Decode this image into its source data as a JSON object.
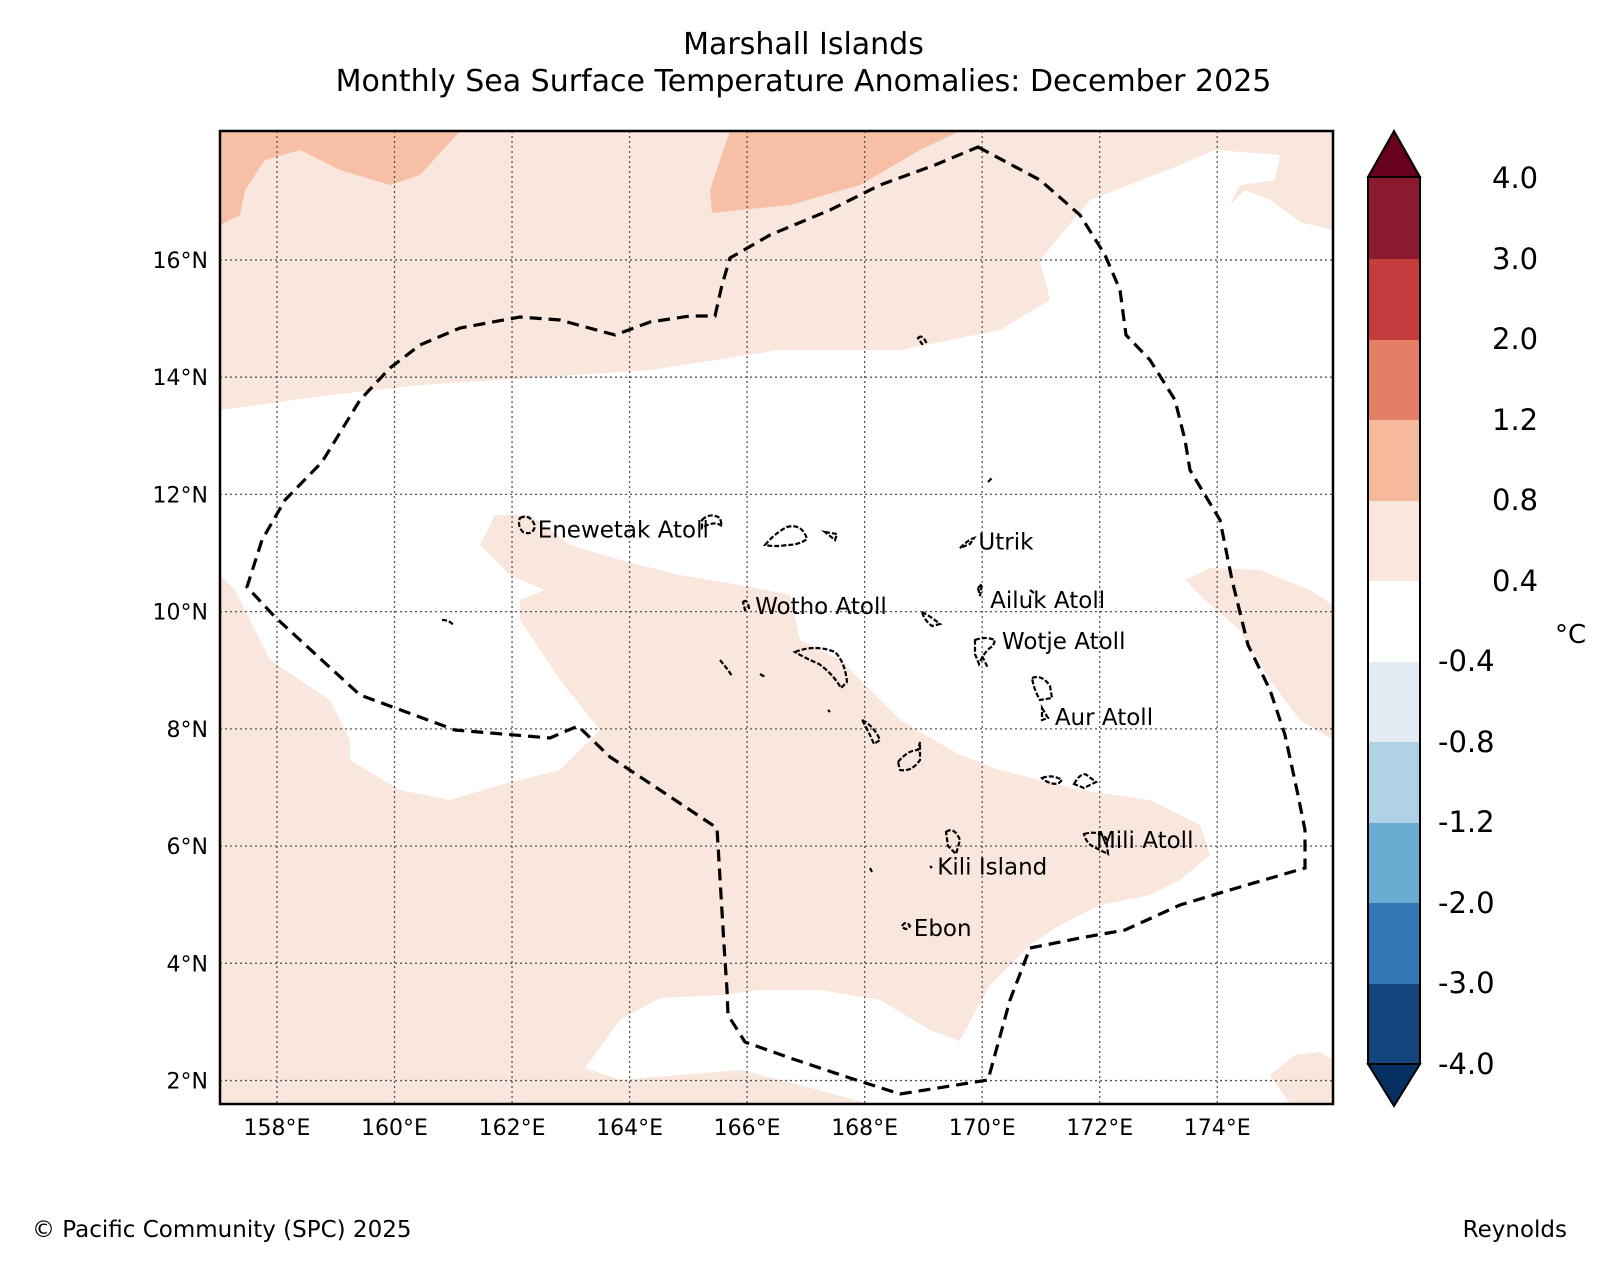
{
  "title": {
    "line1": "Marshall Islands",
    "line2": "Monthly Sea Surface Temperature Anomalies: December 2025"
  },
  "axes": {
    "x_ticks": [
      "158°E",
      "160°E",
      "162°E",
      "164°E",
      "166°E",
      "168°E",
      "170°E",
      "172°E",
      "174°E"
    ],
    "x_values": [
      158,
      160,
      162,
      164,
      166,
      168,
      170,
      172,
      174
    ],
    "y_ticks": [
      "2°N",
      "4°N",
      "6°N",
      "8°N",
      "10°N",
      "12°N",
      "14°N",
      "16°N"
    ],
    "y_values": [
      2,
      4,
      6,
      8,
      10,
      12,
      14,
      16
    ],
    "lon_range": [
      157.03,
      175.97
    ],
    "lat_range": [
      1.6,
      18.2
    ],
    "grid": true
  },
  "places": [
    {
      "name": "Enewetak Atoll",
      "lon": 162.3,
      "lat": 11.4
    },
    {
      "name": "Utrik",
      "lon": 169.8,
      "lat": 11.2
    },
    {
      "name": "Wotho Atoll",
      "lon": 166.0,
      "lat": 10.1
    },
    {
      "name": "Ailuk Atoll",
      "lon": 170.0,
      "lat": 10.2
    },
    {
      "name": "Wotje Atoll",
      "lon": 170.2,
      "lat": 9.5
    },
    {
      "name": "Aur Atoll",
      "lon": 171.1,
      "lat": 8.2
    },
    {
      "name": "Mili Atoll",
      "lon": 171.8,
      "lat": 6.1
    },
    {
      "name": "Kili Island",
      "lon": 169.1,
      "lat": 5.65
    },
    {
      "name": "Ebon",
      "lon": 168.7,
      "lat": 4.6
    }
  ],
  "colorbar": {
    "labels": [
      "4.0",
      "3.0",
      "2.0",
      "1.2",
      "0.8",
      "0.4",
      "-0.4",
      "-0.8",
      "-1.2",
      "-2.0",
      "-3.0",
      "-4.0"
    ],
    "colors": [
      "#67001f",
      "#8b1a2e",
      "#c43c3c",
      "#e27f64",
      "#f7b99c",
      "#f9e6dc",
      "#ffffff",
      "#e3ebf4",
      "#b0d1e6",
      "#6aabd2",
      "#3277b6",
      "#14457d",
      "#053061"
    ],
    "unit": "°C"
  },
  "colors": {
    "anom_0_4_0_8": "#f9e6dc",
    "anom_0_8_1_2": "#f7bfa6",
    "anom_1_2_2_0": "#ec9a7e",
    "boundary": "#000000"
  },
  "footer": {
    "copyright": "© Pacific Community (SPC) 2025",
    "source": "Reynolds"
  }
}
